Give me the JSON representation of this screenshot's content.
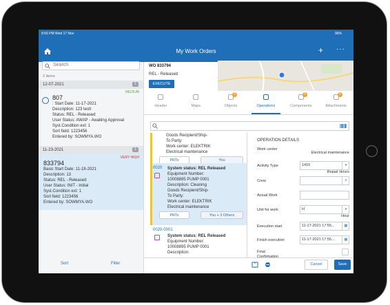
{
  "status_bar": {
    "time": "8:56 PM  Wed 17 Nov",
    "battery": "96%"
  },
  "header": {
    "title": "My Work Orders"
  },
  "list": {
    "search_placeholder": "Search",
    "count": "2 items",
    "groups": [
      {
        "date": "12-07-2021",
        "badge": 1,
        "item": {
          "priority": "MEDIUM",
          "id": "807",
          "lines": [
            ": Start Date: 11-17-2021",
            "Description: 123 testt",
            "Status: REL - Released",
            "User Status: AWAP - Awaiting Approval",
            "Syst.Condition ext: 1",
            "Sort field: 1223456",
            "Entered by: SOWMYA.WO"
          ]
        }
      },
      {
        "date": "11-23-2021",
        "badge": 1,
        "item": {
          "priority": "VERY HIGH",
          "id": "833794",
          "lines": [
            "Basic Start Date: 11-18-2021",
            "Description: 13",
            "Status: REL - Released",
            "User Status: INIT - Initial",
            "Syst.Condition ext: 1",
            "Sort field: 1223456",
            "Entered by: SOWMYA.WO"
          ]
        }
      }
    ],
    "toolbar": {
      "sort": "Sort",
      "filter": "Filter"
    }
  },
  "detail": {
    "wo": "WO 833794",
    "status": "REL - Released",
    "execute": "EXECUTE",
    "tabs": [
      {
        "label": "Header"
      },
      {
        "label": "Maps"
      },
      {
        "label": "Objects",
        "badge": 0
      },
      {
        "label": "Operations"
      },
      {
        "label": "Components",
        "badge": 0
      },
      {
        "label": "Attachments",
        "badge": 0
      }
    ],
    "operations": [
      {
        "lines": [
          "Goods Recipient/Ship-",
          "To Party:",
          "Work center: ELEKTRIK",
          "Electrical maintenance"
        ],
        "buttons": [
          "PRTs",
          "You"
        ]
      },
      {
        "id": "0020",
        "lines": [
          "System status: REL Released",
          "Equipment Number:",
          "10008895 PUMP 0001",
          "Description: Cleaning",
          "Goods Recipient/Ship-",
          "To Party:",
          "Work center: ELEKTRIK",
          "Electrical maintenance"
        ],
        "buttons": [
          "PRTs",
          "You + 3 Others"
        ]
      },
      {
        "id": "0020-0001",
        "lines": [
          "System status: REL Released",
          "Equipment Number:",
          "10008895 PUMP 0001",
          "Description:"
        ]
      }
    ],
    "section_title": "OPERATION DETAILS",
    "fields": [
      {
        "label": "Work center",
        "sub": "Electrical maintenance"
      },
      {
        "label": "Activity Type",
        "value": "1410",
        "sub": "Repair Hours"
      },
      {
        "label": "Crew"
      },
      {
        "label": "Actual Work"
      },
      {
        "label": "Unit for work",
        "value": "H",
        "sub": "Hour"
      },
      {
        "label": "Execution start",
        "value": "11-17-2021 17:55..."
      },
      {
        "label": "Finish execution",
        "value": "11-17-2021 17:55..."
      },
      {
        "label": "Final Confirmation"
      }
    ],
    "cancel": "Cancel",
    "save": "Save"
  }
}
